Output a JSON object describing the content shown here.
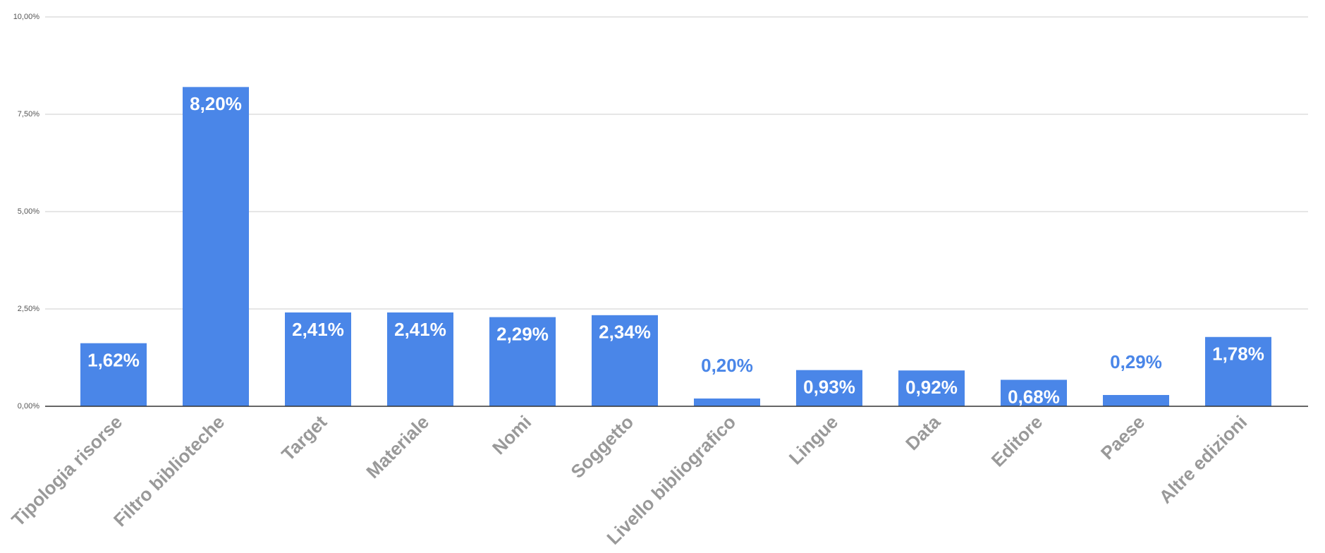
{
  "chart_data": {
    "type": "bar",
    "categories": [
      "Tipologia risorse",
      "Filtro biblioteche",
      "Target",
      "Materiale",
      "Nomi",
      "Soggetto",
      "Livello bibliografico",
      "Lingue",
      "Data",
      "Editore",
      "Paese",
      "Altre edizioni"
    ],
    "values": [
      1.62,
      8.2,
      2.41,
      2.41,
      2.29,
      2.34,
      0.2,
      0.93,
      0.92,
      0.68,
      0.29,
      1.78
    ],
    "value_labels": [
      "1,62%",
      "8,20%",
      "2,41%",
      "2,41%",
      "2,29%",
      "2,34%",
      "0,20%",
      "0,93%",
      "0,92%",
      "0,68%",
      "0,29%",
      "1,78%"
    ],
    "color": "#4a86e8",
    "ylim": [
      0,
      10
    ],
    "yticks": [
      {
        "value": 0,
        "label": "0,00%"
      },
      {
        "value": 2.5,
        "label": "2,50%"
      },
      {
        "value": 5,
        "label": "5,00%"
      },
      {
        "value": 7.5,
        "label": "7,50%"
      },
      {
        "value": 10,
        "label": "10,00%"
      }
    ],
    "grid": true
  }
}
